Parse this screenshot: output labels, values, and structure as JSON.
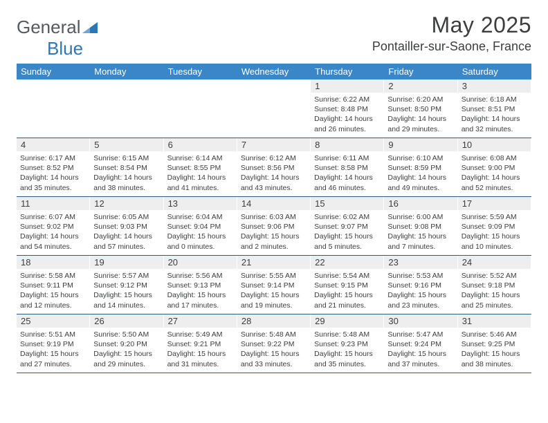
{
  "brand": {
    "part1": "General",
    "part2": "Blue"
  },
  "title": "May 2025",
  "subtitle": "Pontailler-sur-Saone, France",
  "colors": {
    "header_bg": "#3b86c6",
    "header_text": "#ffffff",
    "rule": "#2f5b82",
    "daynum_bg": "#eeeeee",
    "body_text": "#3b3d3e",
    "logo_gray": "#555a5e",
    "logo_blue": "#2e77b4"
  },
  "day_labels": [
    "Sunday",
    "Monday",
    "Tuesday",
    "Wednesday",
    "Thursday",
    "Friday",
    "Saturday"
  ],
  "weeks": [
    [
      {
        "n": "",
        "sunrise": "",
        "sunset": "",
        "daylight": ""
      },
      {
        "n": "",
        "sunrise": "",
        "sunset": "",
        "daylight": ""
      },
      {
        "n": "",
        "sunrise": "",
        "sunset": "",
        "daylight": ""
      },
      {
        "n": "",
        "sunrise": "",
        "sunset": "",
        "daylight": ""
      },
      {
        "n": "1",
        "sunrise": "Sunrise: 6:22 AM",
        "sunset": "Sunset: 8:48 PM",
        "daylight": "Daylight: 14 hours and 26 minutes."
      },
      {
        "n": "2",
        "sunrise": "Sunrise: 6:20 AM",
        "sunset": "Sunset: 8:50 PM",
        "daylight": "Daylight: 14 hours and 29 minutes."
      },
      {
        "n": "3",
        "sunrise": "Sunrise: 6:18 AM",
        "sunset": "Sunset: 8:51 PM",
        "daylight": "Daylight: 14 hours and 32 minutes."
      }
    ],
    [
      {
        "n": "4",
        "sunrise": "Sunrise: 6:17 AM",
        "sunset": "Sunset: 8:52 PM",
        "daylight": "Daylight: 14 hours and 35 minutes."
      },
      {
        "n": "5",
        "sunrise": "Sunrise: 6:15 AM",
        "sunset": "Sunset: 8:54 PM",
        "daylight": "Daylight: 14 hours and 38 minutes."
      },
      {
        "n": "6",
        "sunrise": "Sunrise: 6:14 AM",
        "sunset": "Sunset: 8:55 PM",
        "daylight": "Daylight: 14 hours and 41 minutes."
      },
      {
        "n": "7",
        "sunrise": "Sunrise: 6:12 AM",
        "sunset": "Sunset: 8:56 PM",
        "daylight": "Daylight: 14 hours and 43 minutes."
      },
      {
        "n": "8",
        "sunrise": "Sunrise: 6:11 AM",
        "sunset": "Sunset: 8:58 PM",
        "daylight": "Daylight: 14 hours and 46 minutes."
      },
      {
        "n": "9",
        "sunrise": "Sunrise: 6:10 AM",
        "sunset": "Sunset: 8:59 PM",
        "daylight": "Daylight: 14 hours and 49 minutes."
      },
      {
        "n": "10",
        "sunrise": "Sunrise: 6:08 AM",
        "sunset": "Sunset: 9:00 PM",
        "daylight": "Daylight: 14 hours and 52 minutes."
      }
    ],
    [
      {
        "n": "11",
        "sunrise": "Sunrise: 6:07 AM",
        "sunset": "Sunset: 9:02 PM",
        "daylight": "Daylight: 14 hours and 54 minutes."
      },
      {
        "n": "12",
        "sunrise": "Sunrise: 6:05 AM",
        "sunset": "Sunset: 9:03 PM",
        "daylight": "Daylight: 14 hours and 57 minutes."
      },
      {
        "n": "13",
        "sunrise": "Sunrise: 6:04 AM",
        "sunset": "Sunset: 9:04 PM",
        "daylight": "Daylight: 15 hours and 0 minutes."
      },
      {
        "n": "14",
        "sunrise": "Sunrise: 6:03 AM",
        "sunset": "Sunset: 9:06 PM",
        "daylight": "Daylight: 15 hours and 2 minutes."
      },
      {
        "n": "15",
        "sunrise": "Sunrise: 6:02 AM",
        "sunset": "Sunset: 9:07 PM",
        "daylight": "Daylight: 15 hours and 5 minutes."
      },
      {
        "n": "16",
        "sunrise": "Sunrise: 6:00 AM",
        "sunset": "Sunset: 9:08 PM",
        "daylight": "Daylight: 15 hours and 7 minutes."
      },
      {
        "n": "17",
        "sunrise": "Sunrise: 5:59 AM",
        "sunset": "Sunset: 9:09 PM",
        "daylight": "Daylight: 15 hours and 10 minutes."
      }
    ],
    [
      {
        "n": "18",
        "sunrise": "Sunrise: 5:58 AM",
        "sunset": "Sunset: 9:11 PM",
        "daylight": "Daylight: 15 hours and 12 minutes."
      },
      {
        "n": "19",
        "sunrise": "Sunrise: 5:57 AM",
        "sunset": "Sunset: 9:12 PM",
        "daylight": "Daylight: 15 hours and 14 minutes."
      },
      {
        "n": "20",
        "sunrise": "Sunrise: 5:56 AM",
        "sunset": "Sunset: 9:13 PM",
        "daylight": "Daylight: 15 hours and 17 minutes."
      },
      {
        "n": "21",
        "sunrise": "Sunrise: 5:55 AM",
        "sunset": "Sunset: 9:14 PM",
        "daylight": "Daylight: 15 hours and 19 minutes."
      },
      {
        "n": "22",
        "sunrise": "Sunrise: 5:54 AM",
        "sunset": "Sunset: 9:15 PM",
        "daylight": "Daylight: 15 hours and 21 minutes."
      },
      {
        "n": "23",
        "sunrise": "Sunrise: 5:53 AM",
        "sunset": "Sunset: 9:16 PM",
        "daylight": "Daylight: 15 hours and 23 minutes."
      },
      {
        "n": "24",
        "sunrise": "Sunrise: 5:52 AM",
        "sunset": "Sunset: 9:18 PM",
        "daylight": "Daylight: 15 hours and 25 minutes."
      }
    ],
    [
      {
        "n": "25",
        "sunrise": "Sunrise: 5:51 AM",
        "sunset": "Sunset: 9:19 PM",
        "daylight": "Daylight: 15 hours and 27 minutes."
      },
      {
        "n": "26",
        "sunrise": "Sunrise: 5:50 AM",
        "sunset": "Sunset: 9:20 PM",
        "daylight": "Daylight: 15 hours and 29 minutes."
      },
      {
        "n": "27",
        "sunrise": "Sunrise: 5:49 AM",
        "sunset": "Sunset: 9:21 PM",
        "daylight": "Daylight: 15 hours and 31 minutes."
      },
      {
        "n": "28",
        "sunrise": "Sunrise: 5:48 AM",
        "sunset": "Sunset: 9:22 PM",
        "daylight": "Daylight: 15 hours and 33 minutes."
      },
      {
        "n": "29",
        "sunrise": "Sunrise: 5:48 AM",
        "sunset": "Sunset: 9:23 PM",
        "daylight": "Daylight: 15 hours and 35 minutes."
      },
      {
        "n": "30",
        "sunrise": "Sunrise: 5:47 AM",
        "sunset": "Sunset: 9:24 PM",
        "daylight": "Daylight: 15 hours and 37 minutes."
      },
      {
        "n": "31",
        "sunrise": "Sunrise: 5:46 AM",
        "sunset": "Sunset: 9:25 PM",
        "daylight": "Daylight: 15 hours and 38 minutes."
      }
    ]
  ]
}
